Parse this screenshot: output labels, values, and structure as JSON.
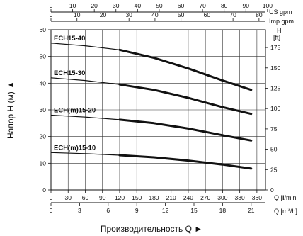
{
  "chart_data": {
    "type": "line",
    "title": "",
    "xlabel": "Производительность Q ►",
    "ylabel": "Напор H (м) ▲",
    "x_unit": "Q [l/min]",
    "x_unit_prefix": "Q [",
    "x_unit_bold": "l",
    "x_unit_suffix": "/min",
    "xlim": [
      0,
      375
    ],
    "ylim": [
      0,
      60
    ],
    "xticks": [
      0,
      30,
      60,
      90,
      120,
      150,
      180,
      210,
      240,
      270,
      300,
      330,
      360
    ],
    "yticks": [
      0,
      10,
      20,
      30,
      40,
      50,
      60
    ],
    "grid": true,
    "legend": "none",
    "secondary_axes": {
      "top_us_gpm": {
        "unit": "US gpm",
        "range": [
          0,
          100
        ],
        "ticks": [
          0,
          10,
          20,
          30,
          40,
          50,
          60,
          70,
          80,
          90,
          100
        ]
      },
      "top_imp_gpm": {
        "unit": "Imp gpm",
        "range": [
          0,
          80
        ],
        "ticks": [
          0,
          10,
          20,
          30,
          40,
          50,
          60,
          70,
          80
        ]
      },
      "right_ft": {
        "unit": "H [ft]",
        "unit_top": "H",
        "unit_bottom": "[ft]",
        "ticks": [
          0,
          25,
          50,
          75,
          100,
          125,
          150,
          175
        ]
      },
      "bottom_m3h": {
        "unit": "Q [m³/h]",
        "unit_prefix": "Q [m",
        "unit_sup": "3",
        "unit_suffix": "/h]",
        "ticks": [
          0,
          3,
          6,
          9,
          12,
          15,
          18,
          21
        ]
      }
    },
    "series": [
      {
        "name": "ECH15-40",
        "x": [
          0,
          60,
          120,
          180,
          240,
          300,
          350
        ],
        "y": [
          55,
          54,
          52.5,
          49.5,
          45.5,
          41,
          37.5
        ]
      },
      {
        "name": "ECH15-30",
        "x": [
          0,
          60,
          120,
          180,
          240,
          300,
          350
        ],
        "y": [
          42,
          41,
          39.5,
          37.5,
          34.5,
          31,
          28.5
        ]
      },
      {
        "name": "ECH(m)15-20",
        "x": [
          0,
          60,
          120,
          180,
          240,
          300,
          350
        ],
        "y": [
          28,
          27.3,
          26.3,
          25,
          23,
          20.5,
          18.5
        ]
      },
      {
        "name": "ECH(m)15-10",
        "x": [
          0,
          60,
          120,
          180,
          240,
          300,
          350
        ],
        "y": [
          14,
          13.6,
          13,
          12.2,
          11,
          9.5,
          8
        ]
      }
    ],
    "colors": {
      "curve": "#111111",
      "grid": "#333333"
    }
  }
}
